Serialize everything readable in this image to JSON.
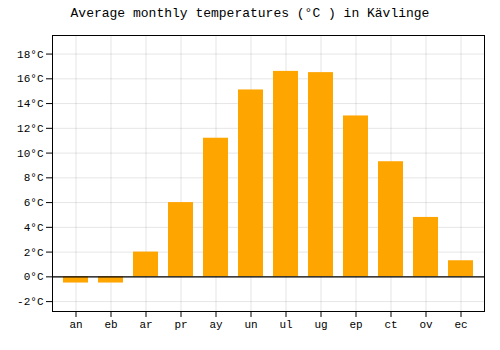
{
  "chart_data": {
    "type": "bar",
    "title": "Average monthly temperatures (°C ) in Kävlinge",
    "categories": [
      "an",
      "eb",
      "ar",
      "pr",
      "ay",
      "un",
      "ul",
      "ug",
      "ep",
      "ct",
      "ov",
      "ec"
    ],
    "values": [
      -0.5,
      -0.5,
      2.0,
      6.0,
      11.2,
      15.1,
      16.6,
      16.5,
      13.0,
      9.3,
      4.8,
      1.3
    ],
    "color": "#FFA500",
    "ylim": [
      -2.8,
      19.5
    ],
    "yticks": [
      {
        "value": -2,
        "label": "-2°C"
      },
      {
        "value": 0,
        "label": "0°C"
      },
      {
        "value": 2,
        "label": "2°C"
      },
      {
        "value": 4,
        "label": "4°C"
      },
      {
        "value": 6,
        "label": "6°C"
      },
      {
        "value": 8,
        "label": "8°C"
      },
      {
        "value": 10,
        "label": "10°C"
      },
      {
        "value": 12,
        "label": "12°C"
      },
      {
        "value": 14,
        "label": "14°C"
      },
      {
        "value": 16,
        "label": "16°C"
      },
      {
        "value": 18,
        "label": "18°C"
      }
    ],
    "grid": true
  }
}
